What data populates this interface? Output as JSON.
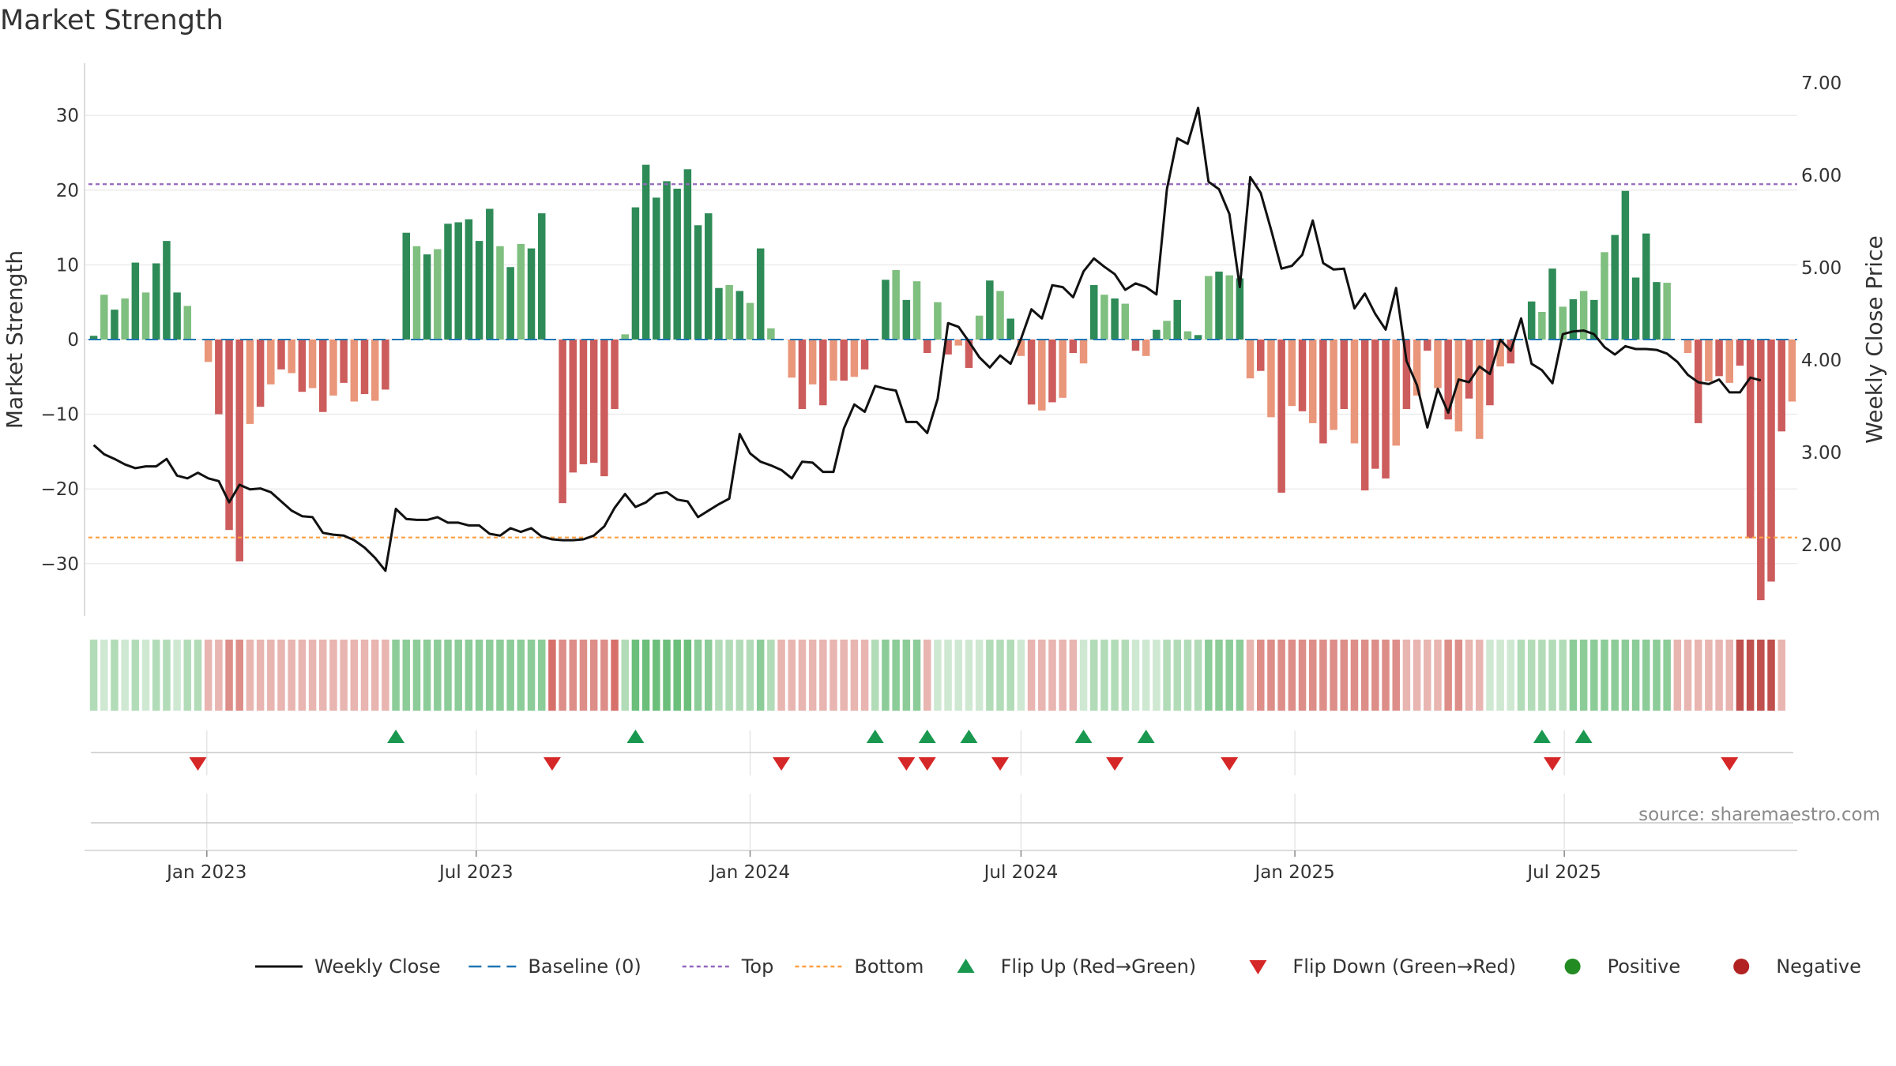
{
  "chart_data": {
    "type": "bar",
    "title": "Market Strength",
    "ylabel": "Market Strength",
    "ylabel_right": "Weekly Close Price",
    "source": "source: sharemaestro.com",
    "ylim": [
      -37,
      37
    ],
    "ylim_right": [
      1.3,
      7.3
    ],
    "yticks": [
      30,
      20,
      10,
      0,
      -10,
      -20,
      -30
    ],
    "ytick_labels": [
      "30",
      "20",
      "10",
      "0",
      "−10",
      "−20",
      "−30"
    ],
    "yticks_right": [
      7,
      6,
      5,
      4,
      3,
      2
    ],
    "ytick_right_labels": [
      "7.00",
      "6.00",
      "5.00",
      "4.00",
      "3.00",
      "2.00"
    ],
    "top_line": 20.8,
    "bottom_line": -26.5,
    "x_start": "2022-10-17",
    "x_ticks": [
      {
        "date": "2023-01-01",
        "label": "Jan 2023"
      },
      {
        "date": "2023-07-01",
        "label": "Jul 2023"
      },
      {
        "date": "2024-01-01",
        "label": "Jan 2024"
      },
      {
        "date": "2024-07-01",
        "label": "Jul 2024"
      },
      {
        "date": "2025-01-01",
        "label": "Jan 2025"
      },
      {
        "date": "2025-07-01",
        "label": "Jul 2025"
      }
    ],
    "colors": {
      "pos_strong": "#2e8b57",
      "pos_light": "#7fbf7f",
      "neg_strong": "#cd5c5c",
      "neg_light": "#e9967a",
      "close": "#111111",
      "baseline": "#1f77b4",
      "top": "#9467bd",
      "bottom": "#ff9f40",
      "flip_up": "#1a9850",
      "flip_down": "#d62728",
      "positive_dot": "#228b22",
      "negative_dot": "#b22222"
    },
    "strength": [
      0.5,
      6,
      4,
      5.5,
      10.3,
      6.3,
      10.2,
      13.2,
      6.3,
      4.5,
      0,
      -3,
      -10,
      -25.5,
      -29.7,
      -11.3,
      -9,
      -6,
      -4,
      -4.5,
      -7,
      -6.5,
      -9.7,
      -7.5,
      -5.8,
      -8.3,
      -7.3,
      -8.2,
      -6.7,
      0,
      14.3,
      12.5,
      11.4,
      12.1,
      15.5,
      15.7,
      16.1,
      13.2,
      17.5,
      12.5,
      9.7,
      12.8,
      12.2,
      16.9,
      0,
      -21.9,
      -17.8,
      -16.7,
      -16.5,
      -18.3,
      -9.3,
      0.7,
      17.7,
      23.4,
      19,
      21.2,
      20.2,
      22.8,
      15.3,
      16.9,
      6.9,
      7.3,
      6.5,
      4.9,
      12.2,
      1.5,
      0,
      -5.1,
      -9.3,
      -6,
      -8.8,
      -5.5,
      -5.5,
      -5,
      -4,
      0,
      8,
      9.3,
      5.3,
      7.8,
      -1.8,
      5,
      -2,
      -0.8,
      -3.8,
      3.2,
      7.9,
      6.5,
      2.8,
      -2.2,
      -8.7,
      -9.5,
      -8.4,
      -7.8,
      -1.8,
      -3.2,
      7.3,
      6,
      5.5,
      4.8,
      -1.5,
      -2.2,
      1.3,
      2.5,
      5.3,
      1.1,
      0.6,
      8.5,
      9.1,
      8.6,
      8.2,
      -5.2,
      -4.2,
      -10.4,
      -20.5,
      -8.9,
      -9.6,
      -11.2,
      -13.9,
      -12.1,
      -9.3,
      -13.9,
      -20.2,
      -17.3,
      -18.6,
      -14.2,
      -9.3,
      -7.5,
      -1.5,
      -6.5,
      -10.7,
      -12.3,
      -7.9,
      -13.3,
      -8.8,
      -3.6,
      -3.2,
      0,
      5.1,
      3.7,
      9.5,
      4.4,
      5.4,
      6.5,
      5.3,
      11.7,
      14,
      19.9,
      8.3,
      14.2,
      7.7,
      7.6,
      0,
      -1.8,
      -11.2,
      -5.6,
      -4.9,
      -5.8,
      -3.5,
      -26.6,
      -34.9,
      -32.4,
      -12.3,
      -8.3
    ],
    "close": [
      3.08,
      2.98,
      2.93,
      2.87,
      2.83,
      2.85,
      2.85,
      2.93,
      2.75,
      2.72,
      2.78,
      2.72,
      2.69,
      2.46,
      2.65,
      2.6,
      2.61,
      2.57,
      2.47,
      2.37,
      2.31,
      2.3,
      2.13,
      2.11,
      2.1,
      2.05,
      1.97,
      1.86,
      1.72,
      2.39,
      2.28,
      2.27,
      2.27,
      2.3,
      2.24,
      2.24,
      2.21,
      2.21,
      2.12,
      2.1,
      2.18,
      2.14,
      2.18,
      2.09,
      2.06,
      2.05,
      2.05,
      2.06,
      2.1,
      2.2,
      2.4,
      2.55,
      2.41,
      2.46,
      2.55,
      2.57,
      2.49,
      2.47,
      2.3,
      2.37,
      2.44,
      2.5,
      3.2,
      2.99,
      2.9,
      2.86,
      2.81,
      2.72,
      2.9,
      2.89,
      2.79,
      2.79,
      3.26,
      3.52,
      3.44,
      3.72,
      3.69,
      3.67,
      3.33,
      3.33,
      3.21,
      3.58,
      4.4,
      4.36,
      4.2,
      4.03,
      3.92,
      4.05,
      3.96,
      4.23,
      4.55,
      4.45,
      4.81,
      4.79,
      4.68,
      4.96,
      5.1,
      5.01,
      4.93,
      4.76,
      4.83,
      4.79,
      4.71,
      5.85,
      6.4,
      6.34,
      6.73,
      5.93,
      5.85,
      5.58,
      4.79,
      5.98,
      5.81,
      5.41,
      4.99,
      5.02,
      5.14,
      5.51,
      5.05,
      4.98,
      4.99,
      4.56,
      4.72,
      4.5,
      4.33,
      4.78,
      3.99,
      3.73,
      3.27,
      3.69,
      3.43,
      3.79,
      3.76,
      3.93,
      3.85,
      4.22,
      4.1,
      4.45,
      3.96,
      3.89,
      3.75,
      4.28,
      4.31,
      4.32,
      4.28,
      4.14,
      4.06,
      4.15,
      4.12,
      4.12,
      4.11,
      4.07,
      3.98,
      3.84,
      3.76,
      3.74,
      3.79,
      3.65,
      3.65,
      3.81,
      3.78
    ],
    "band": [
      4,
      5,
      4,
      5,
      4,
      5,
      4,
      4,
      5,
      4,
      4,
      6,
      6,
      7,
      7,
      6,
      6,
      6,
      6,
      6,
      6,
      6,
      6,
      6,
      6,
      6,
      6,
      6,
      6,
      3,
      3,
      3,
      3,
      3,
      3,
      3,
      3,
      3,
      3,
      3,
      3,
      3,
      3,
      3,
      8,
      7,
      7,
      7,
      7,
      7,
      8,
      4,
      2,
      2,
      2,
      2,
      2,
      2,
      3,
      3,
      4,
      4,
      4,
      4,
      3,
      4,
      6,
      6,
      6,
      6,
      6,
      6,
      6,
      6,
      6,
      4,
      3,
      3,
      3,
      3,
      6,
      5,
      5,
      5,
      5,
      5,
      4,
      4,
      4,
      5,
      6,
      6,
      6,
      6,
      6,
      5,
      4,
      4,
      4,
      4,
      5,
      5,
      5,
      4,
      4,
      4,
      4,
      3,
      3,
      3,
      3,
      6,
      7,
      7,
      7,
      7,
      7,
      7,
      7,
      7,
      7,
      7,
      7,
      7,
      7,
      7,
      6,
      6,
      6,
      6,
      7,
      7,
      6,
      6,
      5,
      5,
      5,
      4,
      4,
      4,
      4,
      4,
      3,
      3,
      3,
      3,
      3,
      3,
      3,
      3,
      3,
      3,
      6,
      6,
      6,
      6,
      6,
      6,
      9,
      9,
      9,
      9,
      6
    ],
    "flip_up_weeks": [
      29,
      52,
      75,
      80,
      84,
      95,
      101,
      139,
      143
    ],
    "flip_down_weeks": [
      10,
      44,
      66,
      78,
      80,
      87,
      98,
      109,
      140,
      157
    ],
    "legend": [
      {
        "label": "Weekly Close",
        "marker": "line"
      },
      {
        "label": "Baseline (0)",
        "marker": "dash"
      },
      {
        "label": "Top",
        "marker": "dot-purple"
      },
      {
        "label": "Bottom",
        "marker": "dot-orange"
      },
      {
        "label": "Flip Up (Red→Green)",
        "marker": "tri-up"
      },
      {
        "label": "Flip Down (Green→Red)",
        "marker": "tri-down"
      },
      {
        "label": "Positive",
        "marker": "circle-green"
      },
      {
        "label": "Negative",
        "marker": "circle-red"
      }
    ]
  }
}
